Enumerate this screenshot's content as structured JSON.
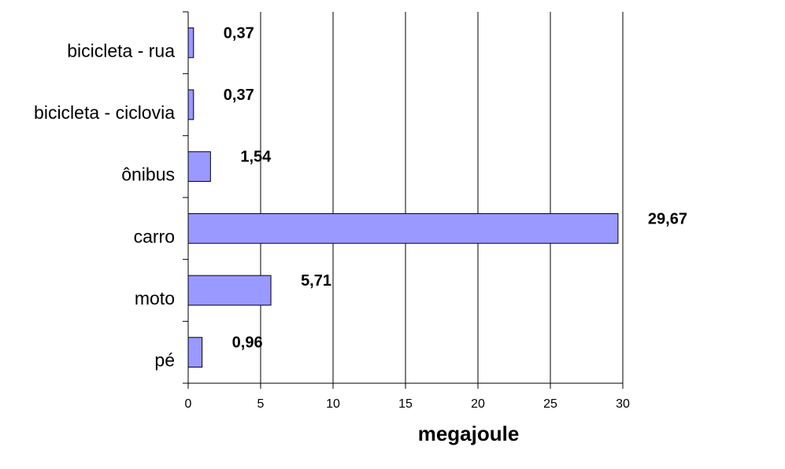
{
  "chart_data": {
    "type": "bar",
    "orientation": "horizontal",
    "categories": [
      "bicicleta - rua",
      "bicicleta - ciclovia",
      "ônibus",
      "carro",
      "moto",
      "pé"
    ],
    "values": [
      0.37,
      0.37,
      1.54,
      29.67,
      5.71,
      0.96
    ],
    "value_labels": [
      "0,37",
      "0,37",
      "1,54",
      "29,67",
      "5,71",
      "0,96"
    ],
    "xlabel": "megajoule",
    "xlim": [
      0,
      30
    ],
    "x_ticks": [
      0,
      5,
      10,
      15,
      20,
      25,
      30
    ],
    "grid": "vertical",
    "legend": "none",
    "bar_color": "#9999FF",
    "bar_outline": "#000000"
  }
}
